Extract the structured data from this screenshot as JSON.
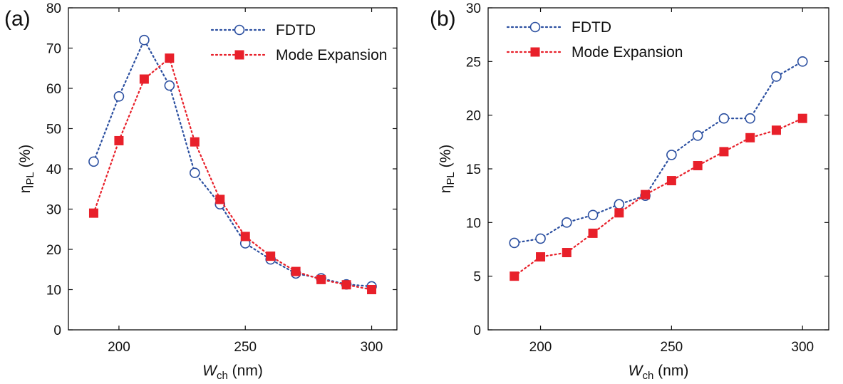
{
  "chart_data": [
    {
      "type": "line",
      "panel_label": "(a)",
      "x": [
        190,
        200,
        210,
        220,
        230,
        240,
        250,
        260,
        270,
        280,
        290,
        300
      ],
      "xlim": [
        180,
        310
      ],
      "ylim": [
        0,
        80
      ],
      "xticks": [
        200,
        250,
        300
      ],
      "yticks": [
        0,
        10,
        20,
        30,
        40,
        50,
        60,
        70,
        80
      ],
      "xlabel": {
        "main": "W",
        "sub": "ch",
        "unit": " (nm)"
      },
      "ylabel": {
        "main": "η",
        "sub": "PL",
        "unit": " (%)"
      },
      "legend_position": "top-right",
      "series": [
        {
          "name": "FDTD",
          "color": "#2b4fa0",
          "marker": "open-circle",
          "line": "dotted",
          "values": [
            41.8,
            58,
            72,
            60.7,
            39,
            31.2,
            21.5,
            17.5,
            14,
            12.8,
            11.3,
            10.8
          ]
        },
        {
          "name": "Mode Expansion",
          "color": "#e8202a",
          "marker": "filled-square",
          "line": "dotted",
          "values": [
            29,
            47,
            62.3,
            67.5,
            46.7,
            32.4,
            23.2,
            18.3,
            14.5,
            12.5,
            11.2,
            10
          ]
        }
      ]
    },
    {
      "type": "line",
      "panel_label": "(b)",
      "x": [
        190,
        200,
        210,
        220,
        230,
        240,
        250,
        260,
        270,
        280,
        290,
        300
      ],
      "xlim": [
        180,
        310
      ],
      "ylim": [
        0,
        30
      ],
      "xticks": [
        200,
        250,
        300
      ],
      "yticks": [
        0,
        5,
        10,
        15,
        20,
        25,
        30
      ],
      "xlabel": {
        "main": "W",
        "sub": "ch",
        "unit": " (nm)"
      },
      "ylabel": {
        "main": "η",
        "sub": "PL",
        "unit": " (%)"
      },
      "legend_position": "top-left",
      "series": [
        {
          "name": "FDTD",
          "color": "#2b4fa0",
          "marker": "open-circle",
          "line": "dotted",
          "values": [
            8.1,
            8.5,
            10,
            10.7,
            11.7,
            12.5,
            16.3,
            18.1,
            19.7,
            19.7,
            23.6,
            25
          ]
        },
        {
          "name": "Mode Expansion",
          "color": "#e8202a",
          "marker": "filled-square",
          "line": "dotted",
          "values": [
            5,
            6.8,
            7.2,
            9,
            10.9,
            12.6,
            13.9,
            15.3,
            16.6,
            17.9,
            18.6,
            19.7
          ]
        }
      ]
    }
  ]
}
